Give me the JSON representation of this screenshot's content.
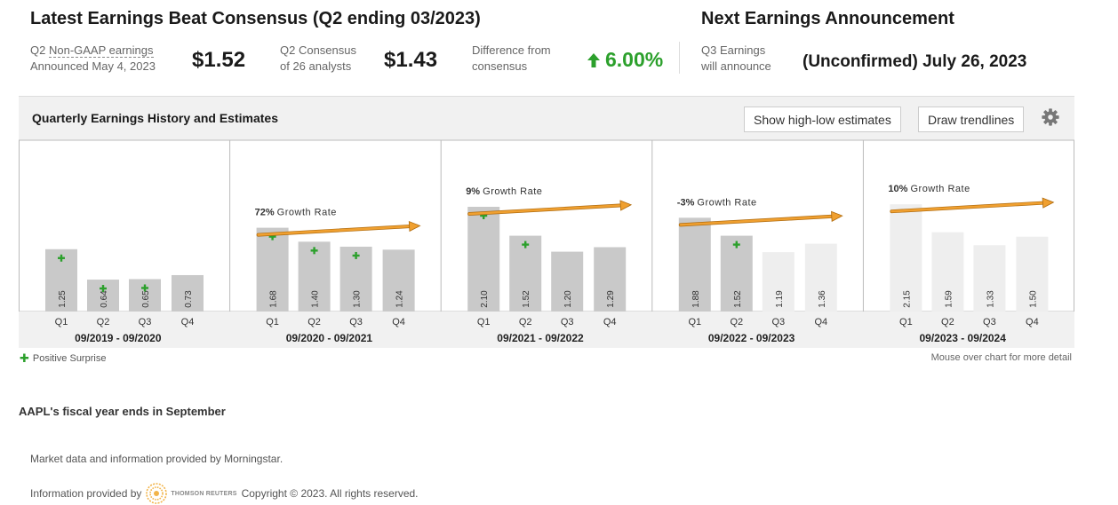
{
  "header": {
    "latest_title": "Latest Earnings Beat Consensus (Q2 ending 03/2023)",
    "next_title": "Next Earnings Announcement",
    "q2_prefix": "Q2 ",
    "q2_link": "Non-GAAP earnings",
    "announced": "Announced May 4, 2023",
    "actual_value": "$1.52",
    "consensus_line1": "Q2 Consensus",
    "consensus_line2": "of 26 analysts",
    "consensus_value": "$1.43",
    "diff_line1": "Difference from",
    "diff_line2": "consensus",
    "diff_value": "6.00%",
    "q3_line1": "Q3 Earnings",
    "q3_line2": "will announce",
    "next_date": "(Unconfirmed) July 26, 2023"
  },
  "panel": {
    "title": "Quarterly Earnings History and Estimates",
    "btn_highlow": "Show high-low estimates",
    "btn_trend": "Draw trendlines"
  },
  "chart_data": {
    "type": "bar",
    "ylim": [
      0,
      2.5
    ],
    "quarter_labels": [
      "Q1",
      "Q2",
      "Q3",
      "Q4"
    ],
    "groups": [
      {
        "label": "09/2019 - 09/2020",
        "values": [
          1.25,
          0.64,
          0.65,
          0.73
        ],
        "estimate": [
          false,
          false,
          false,
          false
        ],
        "surprise": [
          true,
          true,
          true,
          false
        ],
        "growth_pct": "",
        "growth_label": ""
      },
      {
        "label": "09/2020 - 09/2021",
        "values": [
          1.68,
          1.4,
          1.3,
          1.24
        ],
        "estimate": [
          false,
          false,
          false,
          false
        ],
        "surprise": [
          true,
          true,
          true,
          false
        ],
        "growth_pct": "72%",
        "growth_label": "Growth Rate"
      },
      {
        "label": "09/2021 - 09/2022",
        "values": [
          2.1,
          1.52,
          1.2,
          1.29
        ],
        "estimate": [
          false,
          false,
          false,
          false
        ],
        "surprise": [
          true,
          true,
          false,
          false
        ],
        "growth_pct": "9%",
        "growth_label": "Growth Rate"
      },
      {
        "label": "09/2022 - 09/2023",
        "values": [
          1.88,
          1.52,
          1.19,
          1.36
        ],
        "estimate": [
          false,
          false,
          true,
          true
        ],
        "surprise": [
          false,
          true,
          false,
          false
        ],
        "growth_pct": "-3%",
        "growth_label": "Growth Rate"
      },
      {
        "label": "09/2023 - 09/2024",
        "values": [
          2.15,
          1.59,
          1.33,
          1.5
        ],
        "estimate": [
          true,
          true,
          true,
          true
        ],
        "surprise": [
          false,
          false,
          false,
          false
        ],
        "growth_pct": "10%",
        "growth_label": "Growth Rate"
      }
    ],
    "colors": {
      "actual": "#c9c9c9",
      "estimate": "#eeeeee",
      "surprise": "#2ca02c",
      "trend": "#f0a030"
    }
  },
  "legend": {
    "text": "Positive Surprise"
  },
  "mouse_note": "Mouse over chart for more detail",
  "fiscal_note": "AAPL's fiscal year ends in September",
  "market_note": "Market data and information provided by Morningstar.",
  "info_prefix": "Information provided by",
  "tr_logo_text": "THOMSON REUTERS",
  "copyright": "Copyright © 2023. All rights reserved."
}
